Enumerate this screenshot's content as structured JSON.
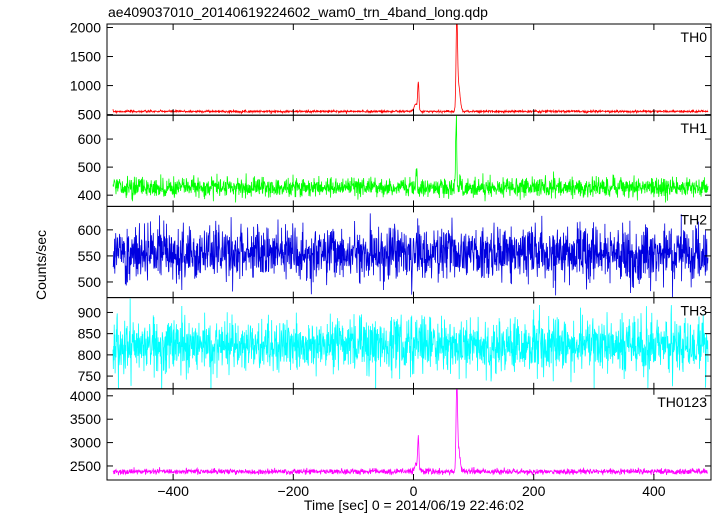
{
  "chart_data": {
    "type": "line",
    "title": "ae409037010_20140619224602_wam0_trn_4band_long.qdp",
    "xlabel": "Time [sec] 0 = 2014/06/19 22:46:02",
    "ylabel": "Counts/sec",
    "xlim": [
      -510,
      495
    ],
    "x_ticks": [
      "−400",
      "−200",
      "0",
      "200",
      "400"
    ],
    "x_tick_values": [
      -400,
      -200,
      0,
      200,
      400
    ],
    "x_range_data": [
      -500,
      490
    ],
    "bin_seconds": 0.5,
    "seed": 7,
    "panels": [
      {
        "name": "TH0",
        "color": "#ff0000",
        "ylim": [
          490,
          2060
        ],
        "y_ticks": [
          "500",
          "1000",
          "1500",
          "2000"
        ],
        "y_tick_values": [
          500,
          1000,
          1500,
          2000
        ],
        "baseline": 555,
        "noise": 10,
        "peaks": [
          {
            "t": 72,
            "amplitude": 1470,
            "width": 1.2
          },
          {
            "t": 75,
            "amplitude": 450,
            "width": 2.5
          },
          {
            "t": 8,
            "amplitude": 470,
            "width": 1.0
          },
          {
            "t": 4,
            "amplitude": 120,
            "width": 3
          }
        ]
      },
      {
        "name": "TH1",
        "color": "#00ff00",
        "ylim": [
          360,
          685
        ],
        "y_ticks": [
          "400",
          "500",
          "600"
        ],
        "y_tick_values": [
          400,
          500,
          600
        ],
        "baseline": 428,
        "noise": 17,
        "peaks": [
          {
            "t": 71,
            "amplitude": 245,
            "width": 1.0
          },
          {
            "t": 5,
            "amplitude": 90,
            "width": 1.0
          }
        ]
      },
      {
        "name": "TH2",
        "color": "#0000e0",
        "ylim": [
          470,
          645
        ],
        "y_ticks": [
          "500",
          "550",
          "600"
        ],
        "y_tick_values": [
          500,
          550,
          600
        ],
        "baseline": 553,
        "noise": 26,
        "peaks": []
      },
      {
        "name": "TH3",
        "color": "#00ffff",
        "ylim": [
          720,
          935
        ],
        "y_ticks": [
          "750",
          "800",
          "850",
          "900"
        ],
        "y_tick_values": [
          750,
          800,
          850,
          900
        ],
        "baseline": 823,
        "noise": 32,
        "peaks": []
      },
      {
        "name": "TH0123",
        "color": "#ff00ff",
        "ylim": [
          2200,
          4150
        ],
        "y_ticks": [
          "2500",
          "3000",
          "3500",
          "4000"
        ],
        "y_tick_values": [
          2500,
          3000,
          3500,
          4000
        ],
        "baseline": 2380,
        "noise": 30,
        "peaks": [
          {
            "t": 72,
            "amplitude": 1720,
            "width": 1.2
          },
          {
            "t": 75,
            "amplitude": 500,
            "width": 2.5
          },
          {
            "t": 8,
            "amplitude": 720,
            "width": 1.0
          },
          {
            "t": 4,
            "amplitude": 150,
            "width": 3
          }
        ]
      }
    ]
  }
}
